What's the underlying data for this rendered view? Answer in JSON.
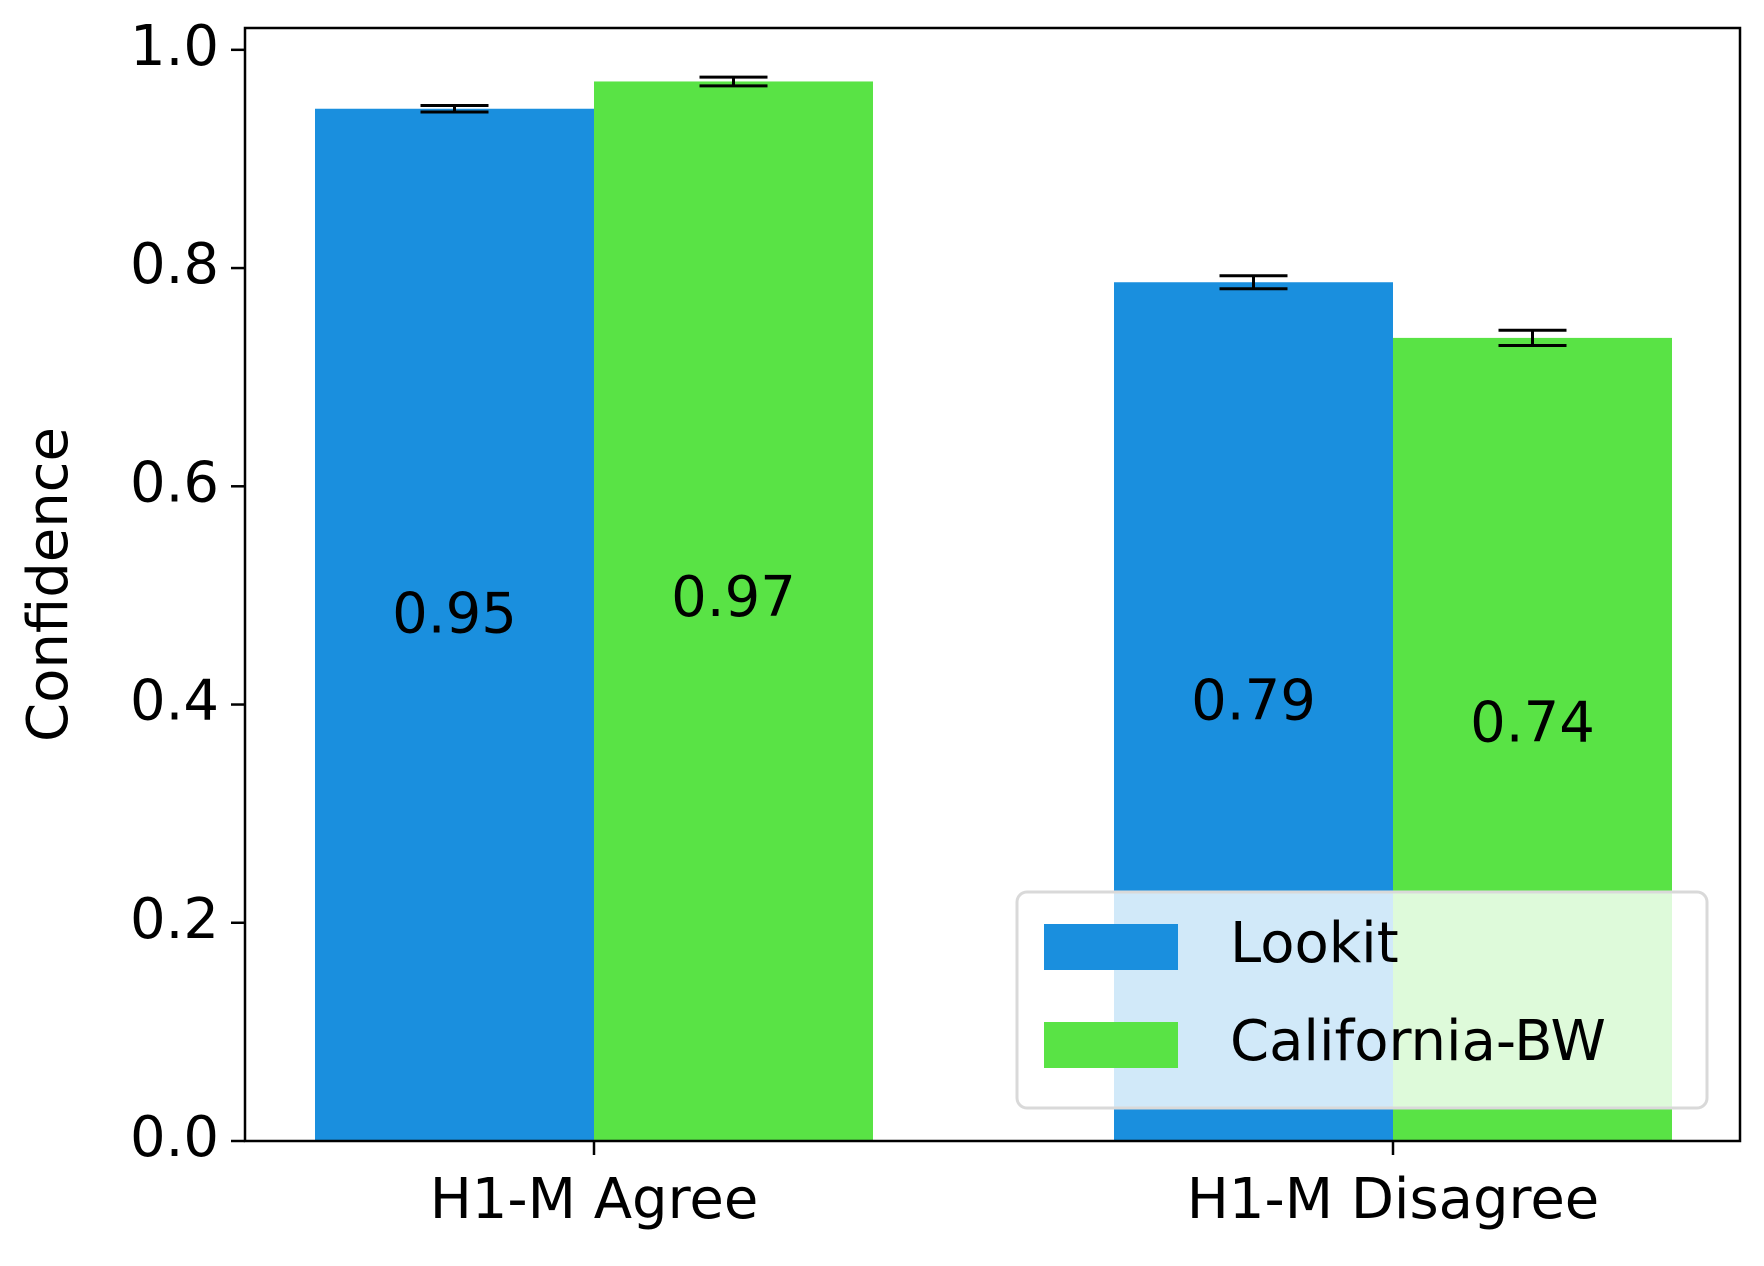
{
  "chart_data": {
    "type": "bar",
    "title": "",
    "xlabel": "",
    "ylabel": "Confidence",
    "categories": [
      "H1-M Agree",
      "H1-M Disagree"
    ],
    "ylim": [
      0,
      1.02
    ],
    "yticks": [
      0.0,
      0.2,
      0.4,
      0.6,
      0.8,
      1.0
    ],
    "ytick_labels": [
      "0.0",
      "0.2",
      "0.4",
      "0.6",
      "0.8",
      "1.0"
    ],
    "grid": false,
    "legend": {
      "position": "lower right"
    },
    "series": [
      {
        "name": "Lookit",
        "color": "#1a8fde",
        "values": [
          0.946,
          0.787
        ],
        "errors": [
          0.003,
          0.006
        ],
        "labels": [
          "0.95",
          "0.79"
        ],
        "label_y": [
          0.48,
          0.4
        ]
      },
      {
        "name": "California-BW",
        "color": "#59e345",
        "values": [
          0.971,
          0.736
        ],
        "errors": [
          0.004,
          0.007
        ],
        "labels": [
          "0.97",
          "0.74"
        ],
        "label_y": [
          0.495,
          0.38
        ]
      }
    ]
  }
}
